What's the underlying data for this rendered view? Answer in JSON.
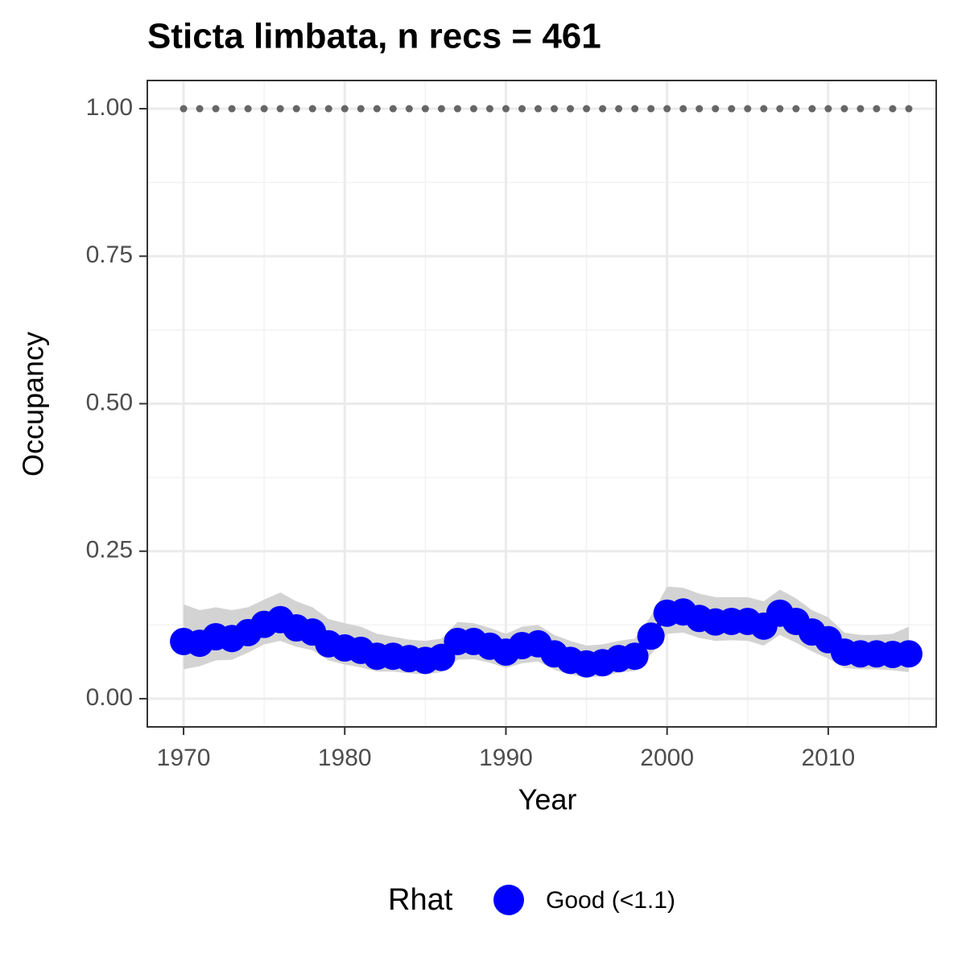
{
  "chart_data": {
    "type": "line",
    "title": "Sticta limbata, n recs = 461",
    "x_label": "Year",
    "y_label": "Occupancy",
    "x": [
      1970,
      1971,
      1972,
      1973,
      1974,
      1975,
      1976,
      1977,
      1978,
      1979,
      1980,
      1981,
      1982,
      1983,
      1984,
      1985,
      1986,
      1987,
      1988,
      1989,
      1990,
      1991,
      1992,
      1993,
      1994,
      1995,
      1996,
      1997,
      1998,
      1999,
      2000,
      2001,
      2002,
      2003,
      2004,
      2005,
      2006,
      2007,
      2008,
      2009,
      2010,
      2011,
      2012,
      2013,
      2014,
      2015
    ],
    "series": [
      {
        "name": "Good (<1.1)",
        "color": "#0000ff",
        "values": [
          0.097,
          0.094,
          0.105,
          0.102,
          0.112,
          0.126,
          0.134,
          0.12,
          0.113,
          0.093,
          0.086,
          0.082,
          0.072,
          0.072,
          0.068,
          0.065,
          0.07,
          0.097,
          0.097,
          0.089,
          0.079,
          0.09,
          0.093,
          0.076,
          0.065,
          0.059,
          0.061,
          0.068,
          0.072,
          0.106,
          0.145,
          0.147,
          0.136,
          0.13,
          0.131,
          0.131,
          0.123,
          0.145,
          0.131,
          0.113,
          0.1,
          0.079,
          0.076,
          0.076,
          0.075,
          0.076
        ],
        "lower": [
          0.05,
          0.055,
          0.065,
          0.066,
          0.078,
          0.092,
          0.098,
          0.088,
          0.082,
          0.065,
          0.058,
          0.053,
          0.046,
          0.046,
          0.043,
          0.041,
          0.045,
          0.066,
          0.067,
          0.061,
          0.052,
          0.06,
          0.063,
          0.049,
          0.041,
          0.036,
          0.038,
          0.044,
          0.047,
          0.075,
          0.11,
          0.112,
          0.103,
          0.098,
          0.099,
          0.098,
          0.09,
          0.108,
          0.095,
          0.08,
          0.068,
          0.052,
          0.05,
          0.05,
          0.048,
          0.045
        ],
        "upper": [
          0.16,
          0.15,
          0.155,
          0.15,
          0.155,
          0.168,
          0.18,
          0.165,
          0.155,
          0.135,
          0.128,
          0.122,
          0.11,
          0.105,
          0.1,
          0.098,
          0.102,
          0.13,
          0.128,
          0.12,
          0.11,
          0.122,
          0.125,
          0.108,
          0.098,
          0.09,
          0.092,
          0.098,
          0.102,
          0.14,
          0.19,
          0.188,
          0.178,
          0.172,
          0.172,
          0.172,
          0.165,
          0.185,
          0.17,
          0.15,
          0.138,
          0.112,
          0.108,
          0.108,
          0.11,
          0.122
        ]
      }
    ],
    "reference": {
      "color": "#666666",
      "values": [
        1,
        1,
        1,
        1,
        1,
        1,
        1,
        1,
        1,
        1,
        1,
        1,
        1,
        1,
        1,
        1,
        1,
        1,
        1,
        1,
        1,
        1,
        1,
        1,
        1,
        1,
        1,
        1,
        1,
        1,
        1,
        1,
        1,
        1,
        1,
        1,
        1,
        1,
        1,
        1,
        1,
        1,
        1,
        1,
        1,
        1
      ]
    },
    "ribbon_color": "#d3d3d3",
    "xlim": [
      1967.75,
      2016.7
    ],
    "ylim": [
      -0.0478,
      1.0478
    ],
    "xticks": [
      1970,
      1980,
      1990,
      2000,
      2010
    ],
    "xminor": [
      1975,
      1985,
      1995,
      2005,
      2015
    ],
    "yticks": [
      {
        "value": 0,
        "label": "0.00"
      },
      {
        "value": 0.25,
        "label": "0.25"
      },
      {
        "value": 0.5,
        "label": "0.50"
      },
      {
        "value": 0.75,
        "label": "0.75"
      },
      {
        "value": 1,
        "label": "1.00"
      }
    ],
    "yminor": [
      0.125,
      0.375,
      0.625,
      0.875
    ],
    "grid": true,
    "legend_title": "Rhat",
    "legend_position": "bottom"
  }
}
